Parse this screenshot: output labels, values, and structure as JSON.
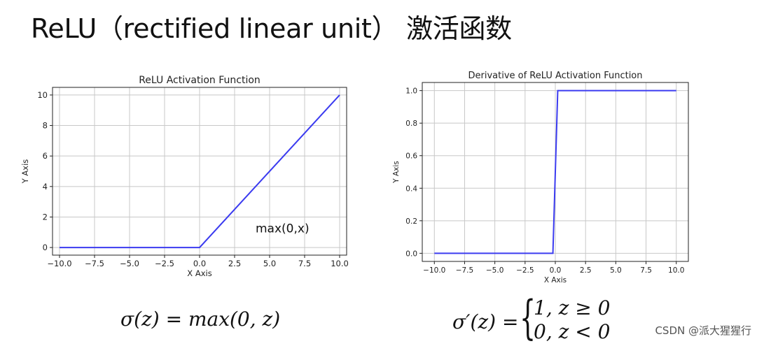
{
  "slide_title": "ReLU（rectified linear unit） 激活函数",
  "formula_left": "σ(z) = max(0, z)",
  "formula_right": {
    "lhs": "σ′(z) =",
    "cases": [
      "1, z ≥ 0",
      "0, z < 0"
    ]
  },
  "watermark": "CSDN @派大猩猩行",
  "chart_data": [
    {
      "type": "line",
      "title": "ReLU Activation Function",
      "xlabel": "X Axis",
      "ylabel": "Y Axis",
      "xlim": [
        -10.5,
        10.5
      ],
      "ylim": [
        -0.5,
        10.5
      ],
      "xticks": [
        -10.0,
        -7.5,
        -5.0,
        -2.5,
        0.0,
        2.5,
        5.0,
        7.5,
        10.0
      ],
      "xtick_labels": [
        "−10.0",
        "−7.5",
        "−5.0",
        "−2.5",
        "0.0",
        "2.5",
        "5.0",
        "7.5",
        "10.0"
      ],
      "yticks": [
        0,
        2,
        4,
        6,
        8,
        10
      ],
      "ytick_labels": [
        "0",
        "2",
        "4",
        "6",
        "8",
        "10"
      ],
      "grid": true,
      "line_color": "#3b3bf0",
      "series": [
        {
          "x": [
            -10,
            0,
            10
          ],
          "y": [
            0,
            0,
            10
          ]
        }
      ],
      "annotations": [
        {
          "text": "max(0,x)",
          "x": 4,
          "y": 1
        }
      ]
    },
    {
      "type": "line",
      "title": "Derivative of ReLU Activation Function",
      "xlabel": "X Axis",
      "ylabel": "Y Axis",
      "xlim": [
        -11,
        11
      ],
      "ylim": [
        -0.05,
        1.05
      ],
      "xticks": [
        -10.0,
        -7.5,
        -5.0,
        -2.5,
        0.0,
        2.5,
        5.0,
        7.5,
        10.0
      ],
      "xtick_labels": [
        "−10.0",
        "−7.5",
        "−5.0",
        "−2.5",
        "0.0",
        "2.5",
        "5.0",
        "7.5",
        "10.0"
      ],
      "yticks": [
        0.0,
        0.2,
        0.4,
        0.6,
        0.8,
        1.0
      ],
      "ytick_labels": [
        "0.0",
        "0.2",
        "0.4",
        "0.6",
        "0.8",
        "1.0"
      ],
      "grid": true,
      "line_color": "#3b3bf0",
      "series": [
        {
          "x": [
            -10,
            -0.2,
            0.2,
            10
          ],
          "y": [
            0,
            0,
            1,
            1
          ]
        }
      ],
      "annotations": []
    }
  ]
}
